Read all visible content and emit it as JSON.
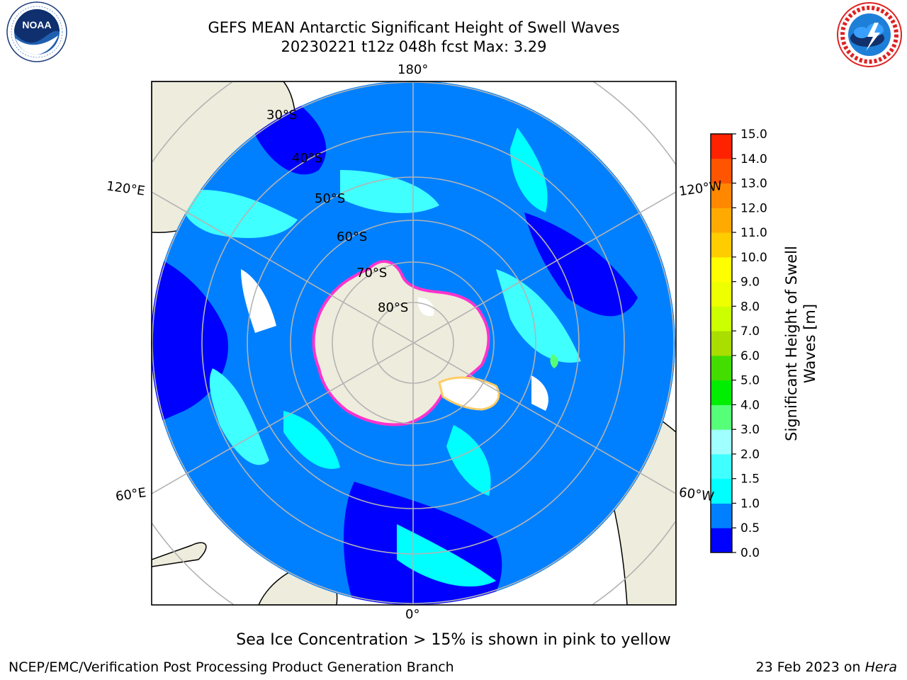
{
  "title": {
    "line1": "GEFS MEAN Antarctic Significant Height of Swell Waves",
    "line2": "20230221 t12z 048h fcst   Max: 3.29"
  },
  "logos": {
    "left": {
      "icon": "noaa-logo",
      "text": "NOAA"
    },
    "right": {
      "icon": "national-weather-service-logo",
      "text": "NATIONAL WEATHER SERVICE"
    }
  },
  "map": {
    "projection": "south-polar-stereographic",
    "longitude_labels": {
      "top": "180°",
      "bottom": "0°",
      "left_upper": "120°E",
      "right_upper": "120°W",
      "left_lower": "60°E",
      "right_lower": "60°W"
    },
    "latitude_labels": [
      "30°S",
      "40°S",
      "50°S",
      "60°S",
      "70°S",
      "80°S"
    ],
    "colors": {
      "land": "#eeecdc",
      "missing": "#ffffff",
      "grid": "#b3b3b3",
      "sea_ice_edge": [
        "#ff33cc",
        "#ff66ff",
        "#ffcc66"
      ]
    }
  },
  "colorbar": {
    "label": "Significant Height of Swell Waves [m]",
    "ticks": [
      "0.0",
      "0.5",
      "1.0",
      "1.5",
      "2.0",
      "3.0",
      "4.0",
      "5.0",
      "6.0",
      "7.0",
      "8.0",
      "9.0",
      "10.0",
      "11.0",
      "12.0",
      "13.0",
      "14.0",
      "15.0"
    ],
    "colors": [
      "#0000ff",
      "#0080ff",
      "#00ffff",
      "#40ffff",
      "#a0ffff",
      "#55ff77",
      "#00ee00",
      "#44dd00",
      "#aadd00",
      "#ccff00",
      "#eeff00",
      "#ffff00",
      "#ffcc00",
      "#ffaa00",
      "#ff8800",
      "#ff5500",
      "#ff2200",
      "#ff0000"
    ]
  },
  "footer": {
    "note": "Sea Ice Concentration > 15% is shown in pink to yellow",
    "credit": "NCEP/EMC/Verification Post Processing Product Generation Branch",
    "date": "23 Feb 2023 on",
    "host": "Hera"
  }
}
